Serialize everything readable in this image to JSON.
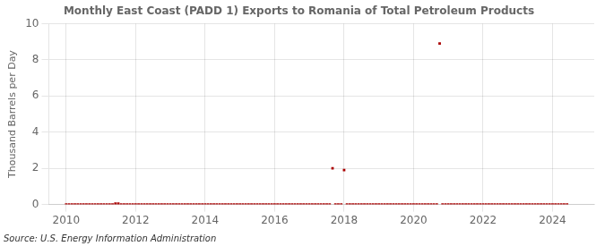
{
  "chart_data": {
    "type": "scatter",
    "title": "Monthly East Coast (PADD 1) Exports to Romania of Total Petroleum Products",
    "ylabel": "Thousand Barrels per Day",
    "annotations": [
      "Source: U.S. Energy Information Administration"
    ],
    "color": "#aa0000",
    "marker": "square",
    "grid": true,
    "xlim": [
      2009.5,
      2025.2
    ],
    "ylim": [
      0,
      10
    ],
    "xticks": [
      2010,
      2012,
      2014,
      2016,
      2018,
      2020,
      2022,
      2024
    ],
    "yticks": [
      0,
      2,
      4,
      6,
      8,
      10
    ],
    "x": [
      2010.0,
      2010.083,
      2010.167,
      2010.25,
      2010.333,
      2010.417,
      2010.5,
      2010.583,
      2010.667,
      2010.75,
      2010.833,
      2010.917,
      2011.0,
      2011.083,
      2011.167,
      2011.25,
      2011.333,
      2011.417,
      2011.5,
      2011.583,
      2011.667,
      2011.75,
      2011.833,
      2011.917,
      2012.0,
      2012.083,
      2012.167,
      2012.25,
      2012.333,
      2012.417,
      2012.5,
      2012.583,
      2012.667,
      2012.75,
      2012.833,
      2012.917,
      2013.0,
      2013.083,
      2013.167,
      2013.25,
      2013.333,
      2013.417,
      2013.5,
      2013.583,
      2013.667,
      2013.75,
      2013.833,
      2013.917,
      2014.0,
      2014.083,
      2014.167,
      2014.25,
      2014.333,
      2014.417,
      2014.5,
      2014.583,
      2014.667,
      2014.75,
      2014.833,
      2014.917,
      2015.0,
      2015.083,
      2015.167,
      2015.25,
      2015.333,
      2015.417,
      2015.5,
      2015.583,
      2015.667,
      2015.75,
      2015.833,
      2015.917,
      2016.0,
      2016.083,
      2016.167,
      2016.25,
      2016.333,
      2016.417,
      2016.5,
      2016.583,
      2016.667,
      2016.75,
      2016.833,
      2016.917,
      2017.0,
      2017.083,
      2017.167,
      2017.25,
      2017.333,
      2017.417,
      2017.5,
      2017.583,
      2017.667,
      2017.75,
      2017.833,
      2017.917,
      2018.0,
      2018.083,
      2018.167,
      2018.25,
      2018.333,
      2018.417,
      2018.5,
      2018.583,
      2018.667,
      2018.75,
      2018.833,
      2018.917,
      2019.0,
      2019.083,
      2019.167,
      2019.25,
      2019.333,
      2019.417,
      2019.5,
      2019.583,
      2019.667,
      2019.75,
      2019.833,
      2019.917,
      2020.0,
      2020.083,
      2020.167,
      2020.25,
      2020.333,
      2020.417,
      2020.5,
      2020.583,
      2020.667,
      2020.75,
      2020.833,
      2020.917,
      2021.0,
      2021.083,
      2021.167,
      2021.25,
      2021.333,
      2021.417,
      2021.5,
      2021.583,
      2021.667,
      2021.75,
      2021.833,
      2021.917,
      2022.0,
      2022.083,
      2022.167,
      2022.25,
      2022.333,
      2022.417,
      2022.5,
      2022.583,
      2022.667,
      2022.75,
      2022.833,
      2022.917,
      2023.0,
      2023.083,
      2023.167,
      2023.25,
      2023.333,
      2023.417,
      2023.5,
      2023.583,
      2023.667,
      2023.75,
      2023.833,
      2023.917,
      2024.0,
      2024.083,
      2024.167,
      2024.25,
      2024.333,
      2024.417
    ],
    "values": [
      0,
      0,
      0,
      0,
      0,
      0,
      0,
      0,
      0,
      0,
      0,
      0,
      0,
      0,
      0,
      0,
      0,
      0.05,
      0.05,
      0,
      0,
      0,
      0,
      0,
      0,
      0,
      0,
      0,
      0,
      0,
      0,
      0,
      0,
      0,
      0,
      0,
      0,
      0,
      0,
      0,
      0,
      0,
      0,
      0,
      0,
      0,
      0,
      0,
      0,
      0,
      0,
      0,
      0,
      0,
      0,
      0,
      0,
      0,
      0,
      0,
      0,
      0,
      0,
      0,
      0,
      0,
      0,
      0,
      0,
      0,
      0,
      0,
      0,
      0,
      0,
      0,
      0,
      0,
      0,
      0,
      0,
      0,
      0,
      0,
      0,
      0,
      0,
      0,
      0,
      0,
      0,
      0,
      2.0,
      0,
      0,
      0,
      1.9,
      0,
      0,
      0,
      0,
      0,
      0,
      0,
      0,
      0,
      0,
      0,
      0,
      0,
      0,
      0,
      0,
      0,
      0,
      0,
      0,
      0,
      0,
      0,
      0,
      0,
      0,
      0,
      0,
      0,
      0,
      0,
      0,
      8.9,
      0,
      0,
      0,
      0,
      0,
      0,
      0,
      0,
      0,
      0,
      0,
      0,
      0,
      0,
      0,
      0,
      0,
      0,
      0,
      0,
      0,
      0,
      0,
      0,
      0,
      0,
      0,
      0,
      0,
      0,
      0,
      0,
      0,
      0,
      0,
      0,
      0,
      0,
      0,
      0,
      0,
      0,
      0,
      0
    ]
  }
}
